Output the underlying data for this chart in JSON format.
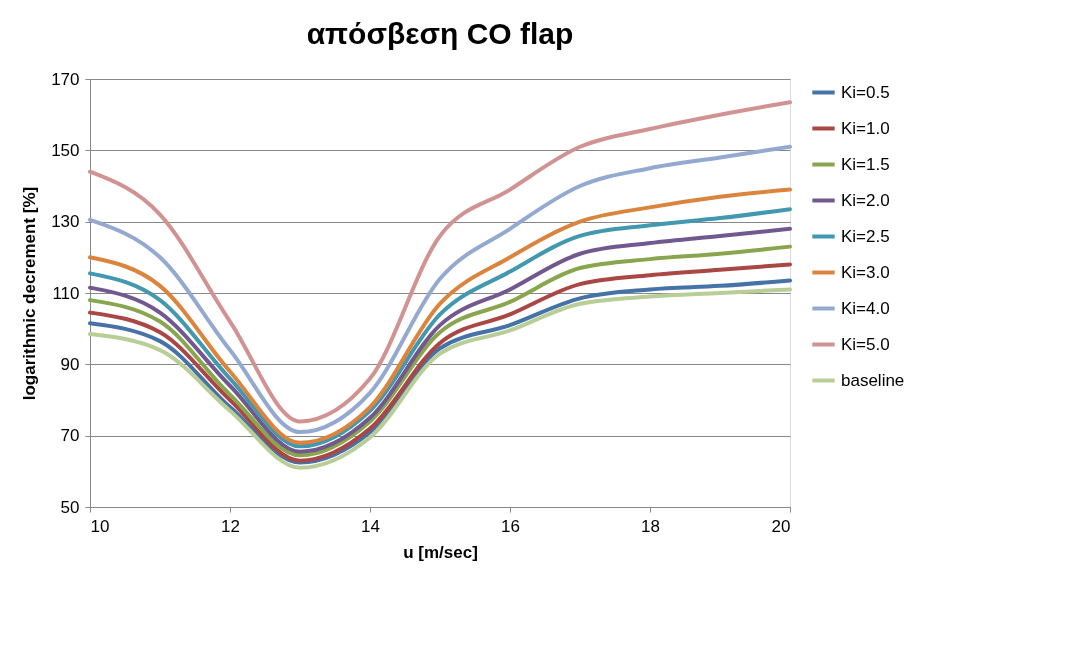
{
  "chart_data": {
    "type": "line",
    "title": "απόσβεση CO flap",
    "xlabel": "u [m/sec]",
    "ylabel": "logarithmic decrement [%]",
    "x": [
      10,
      11,
      12,
      13,
      14,
      15,
      16,
      17,
      18,
      19,
      20
    ],
    "xlim": [
      10,
      20
    ],
    "xticks": [
      10,
      12,
      14,
      16,
      18,
      20
    ],
    "ylim": [
      50,
      170
    ],
    "yticks": [
      50,
      70,
      90,
      110,
      130,
      150,
      170
    ],
    "grid": "y",
    "legend": "right",
    "marker": "none",
    "line_style": "solid",
    "series": [
      {
        "name": "Ki=0.5",
        "color": "#4572a7",
        "values": [
          101.5,
          96.5,
          78,
          62.5,
          71,
          94.5,
          101,
          108.5,
          111,
          112,
          113.5
        ]
      },
      {
        "name": "Ki=1.0",
        "color": "#aa4643",
        "values": [
          104.5,
          99,
          80,
          63,
          72,
          96,
          104,
          112.5,
          115,
          116.5,
          118
        ]
      },
      {
        "name": "Ki=1.5",
        "color": "#89a54e",
        "values": [
          108,
          102,
          81.5,
          64.5,
          74,
          99,
          107.5,
          117,
          119.5,
          121,
          123
        ]
      },
      {
        "name": "Ki=2.0",
        "color": "#71588f",
        "values": [
          111.5,
          104.5,
          84,
          65.5,
          75,
          101,
          111,
          121,
          124,
          126,
          128
        ]
      },
      {
        "name": "Ki=2.5",
        "color": "#4198af",
        "values": [
          115.5,
          108,
          86,
          67,
          77,
          104,
          116,
          126,
          129,
          131,
          133.5
        ]
      },
      {
        "name": "Ki=3.0",
        "color": "#db843d",
        "values": [
          120,
          112,
          88,
          68,
          78,
          107,
          120,
          130,
          134,
          137,
          139
        ]
      },
      {
        "name": "Ki=4.0",
        "color": "#93a9cf",
        "values": [
          130.5,
          120,
          94,
          71,
          82,
          114,
          128,
          140,
          145,
          148,
          151
        ]
      },
      {
        "name": "Ki=5.0",
        "color": "#d19392",
        "values": [
          144,
          132,
          102,
          74,
          86,
          126,
          139,
          151,
          156,
          160,
          163.5
        ]
      },
      {
        "name": "baseline",
        "color": "#b9cd96",
        "values": [
          98.5,
          94,
          77,
          61,
          69.5,
          93,
          99.5,
          107,
          109,
          110,
          111
        ]
      }
    ]
  }
}
